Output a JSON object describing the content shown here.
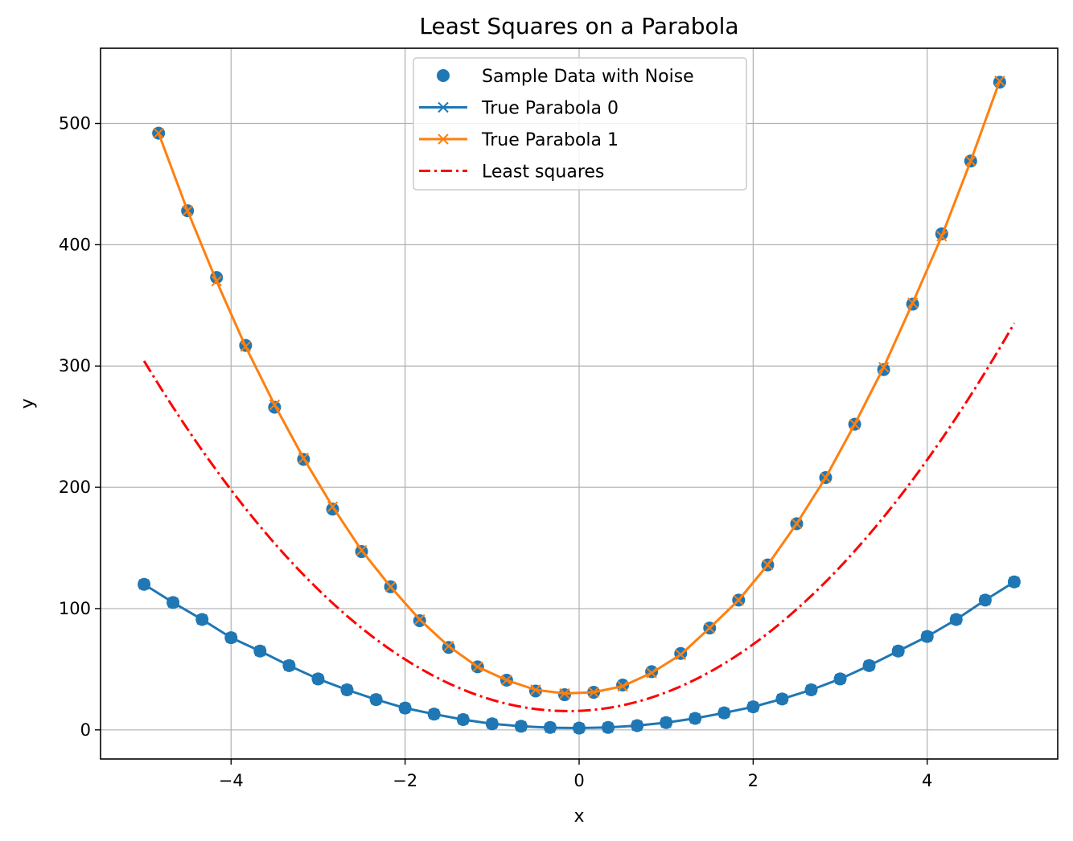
{
  "chart_data": {
    "type": "line",
    "title": "Least Squares on a Parabola",
    "xlabel": "x",
    "ylabel": "y",
    "xlim": [
      -5.5,
      5.5
    ],
    "ylim": [
      -24,
      562
    ],
    "xticks": [
      -4,
      -2,
      0,
      2,
      4
    ],
    "xtick_labels": [
      "−4",
      "−2",
      "0",
      "2",
      "4"
    ],
    "yticks": [
      0,
      100,
      200,
      300,
      400,
      500
    ],
    "ytick_labels": [
      "0",
      "100",
      "200",
      "300",
      "400",
      "500"
    ],
    "grid": true,
    "legend_position": "top-center",
    "colors": {
      "series0": "#1f77b4",
      "series1": "#ff7f0e",
      "least_squares": "#ff0000",
      "scatter": "#1f77b4",
      "grid": "#b0b0b0"
    },
    "series": [
      {
        "name": "True Parabola 0",
        "kind": "line-x-markers",
        "color": "#1f77b4",
        "x": [
          -5.0,
          -4.667,
          -4.333,
          -4.0,
          -3.667,
          -3.333,
          -3.0,
          -2.667,
          -2.333,
          -2.0,
          -1.667,
          -1.333,
          -1.0,
          -0.667,
          -0.333,
          0.0,
          0.333,
          0.667,
          1.0,
          1.333,
          1.667,
          2.0,
          2.333,
          2.667,
          3.0,
          3.333,
          3.667,
          4.0,
          4.333,
          4.667,
          5.0
        ],
        "y": [
          120,
          105,
          91,
          76,
          65,
          53,
          42,
          33,
          25,
          18,
          13,
          8.5,
          5,
          3,
          1.8,
          1.5,
          2,
          3.5,
          6,
          9.5,
          14,
          19,
          25.5,
          33,
          42,
          53,
          65,
          77,
          91,
          107,
          122
        ]
      },
      {
        "name": "True Parabola 1",
        "kind": "line-x-markers",
        "color": "#ff7f0e",
        "x": [
          -4.833,
          -4.5,
          -4.167,
          -3.833,
          -3.5,
          -3.167,
          -2.833,
          -2.5,
          -2.167,
          -1.833,
          -1.5,
          -1.167,
          -0.833,
          -0.5,
          -0.167,
          0.167,
          0.5,
          0.833,
          1.167,
          1.5,
          1.833,
          2.167,
          2.5,
          2.833,
          3.167,
          3.5,
          3.833,
          4.167,
          4.5,
          4.833
        ],
        "y": [
          492,
          428,
          370,
          316,
          268,
          224,
          184,
          148,
          118,
          91,
          69,
          52,
          41,
          33,
          30,
          31,
          36,
          47,
          62,
          84,
          107,
          136,
          170,
          208,
          252,
          299,
          352,
          407,
          469,
          535
        ]
      },
      {
        "name": "Least squares",
        "kind": "dash-dot",
        "color": "#ff0000",
        "x_range": [
          -5.0,
          5.0
        ],
        "coefficients": {
          "a": 12.16,
          "b": 3.1,
          "c": 15.7
        }
      }
    ],
    "scatter": {
      "name": "Sample Data with Noise",
      "color": "#1f77b4",
      "points_series0": [
        [
          -5.0,
          120
        ],
        [
          -4.667,
          105
        ],
        [
          -4.333,
          91
        ],
        [
          -4.0,
          76
        ],
        [
          -3.667,
          65
        ],
        [
          -3.333,
          53
        ],
        [
          -3.0,
          42
        ],
        [
          -2.667,
          33
        ],
        [
          -2.333,
          25
        ],
        [
          -2.0,
          18
        ],
        [
          -1.667,
          13
        ],
        [
          -1.333,
          8.5
        ],
        [
          -1.0,
          5
        ],
        [
          -0.667,
          3
        ],
        [
          -0.333,
          2
        ],
        [
          0.0,
          1.5
        ],
        [
          0.333,
          2
        ],
        [
          0.667,
          3.5
        ],
        [
          1.0,
          6
        ],
        [
          1.333,
          9.5
        ],
        [
          1.667,
          14
        ],
        [
          2.0,
          19
        ],
        [
          2.333,
          25.5
        ],
        [
          2.667,
          33
        ],
        [
          3.0,
          42
        ],
        [
          3.333,
          53
        ],
        [
          3.667,
          65
        ],
        [
          4.0,
          77
        ],
        [
          4.333,
          91
        ],
        [
          4.667,
          107
        ],
        [
          5.0,
          122
        ]
      ],
      "points_series1": [
        [
          -4.833,
          492
        ],
        [
          -4.5,
          428
        ],
        [
          -4.167,
          373
        ],
        [
          -3.833,
          317
        ],
        [
          -3.5,
          266
        ],
        [
          -3.167,
          223
        ],
        [
          -2.833,
          182
        ],
        [
          -2.5,
          147
        ],
        [
          -2.167,
          118
        ],
        [
          -1.833,
          90
        ],
        [
          -1.5,
          68
        ],
        [
          -1.167,
          52
        ],
        [
          -0.833,
          41
        ],
        [
          -0.5,
          32
        ],
        [
          -0.167,
          29
        ],
        [
          0.167,
          31
        ],
        [
          0.5,
          37
        ],
        [
          0.833,
          48
        ],
        [
          1.167,
          63
        ],
        [
          1.5,
          84
        ],
        [
          1.833,
          107
        ],
        [
          2.167,
          136
        ],
        [
          2.5,
          170
        ],
        [
          2.833,
          208
        ],
        [
          3.167,
          252
        ],
        [
          3.5,
          297
        ],
        [
          3.833,
          351
        ],
        [
          4.167,
          409
        ],
        [
          4.5,
          469
        ],
        [
          4.833,
          534
        ]
      ]
    },
    "legend": [
      {
        "label": "Sample Data with Noise",
        "kind": "scatter",
        "color": "#1f77b4"
      },
      {
        "label": "True Parabola 0",
        "kind": "line-x-markers",
        "color": "#1f77b4"
      },
      {
        "label": "True Parabola 1",
        "kind": "line-x-markers",
        "color": "#ff7f0e"
      },
      {
        "label": "Least squares",
        "kind": "dash-dot",
        "color": "#ff0000"
      }
    ]
  }
}
